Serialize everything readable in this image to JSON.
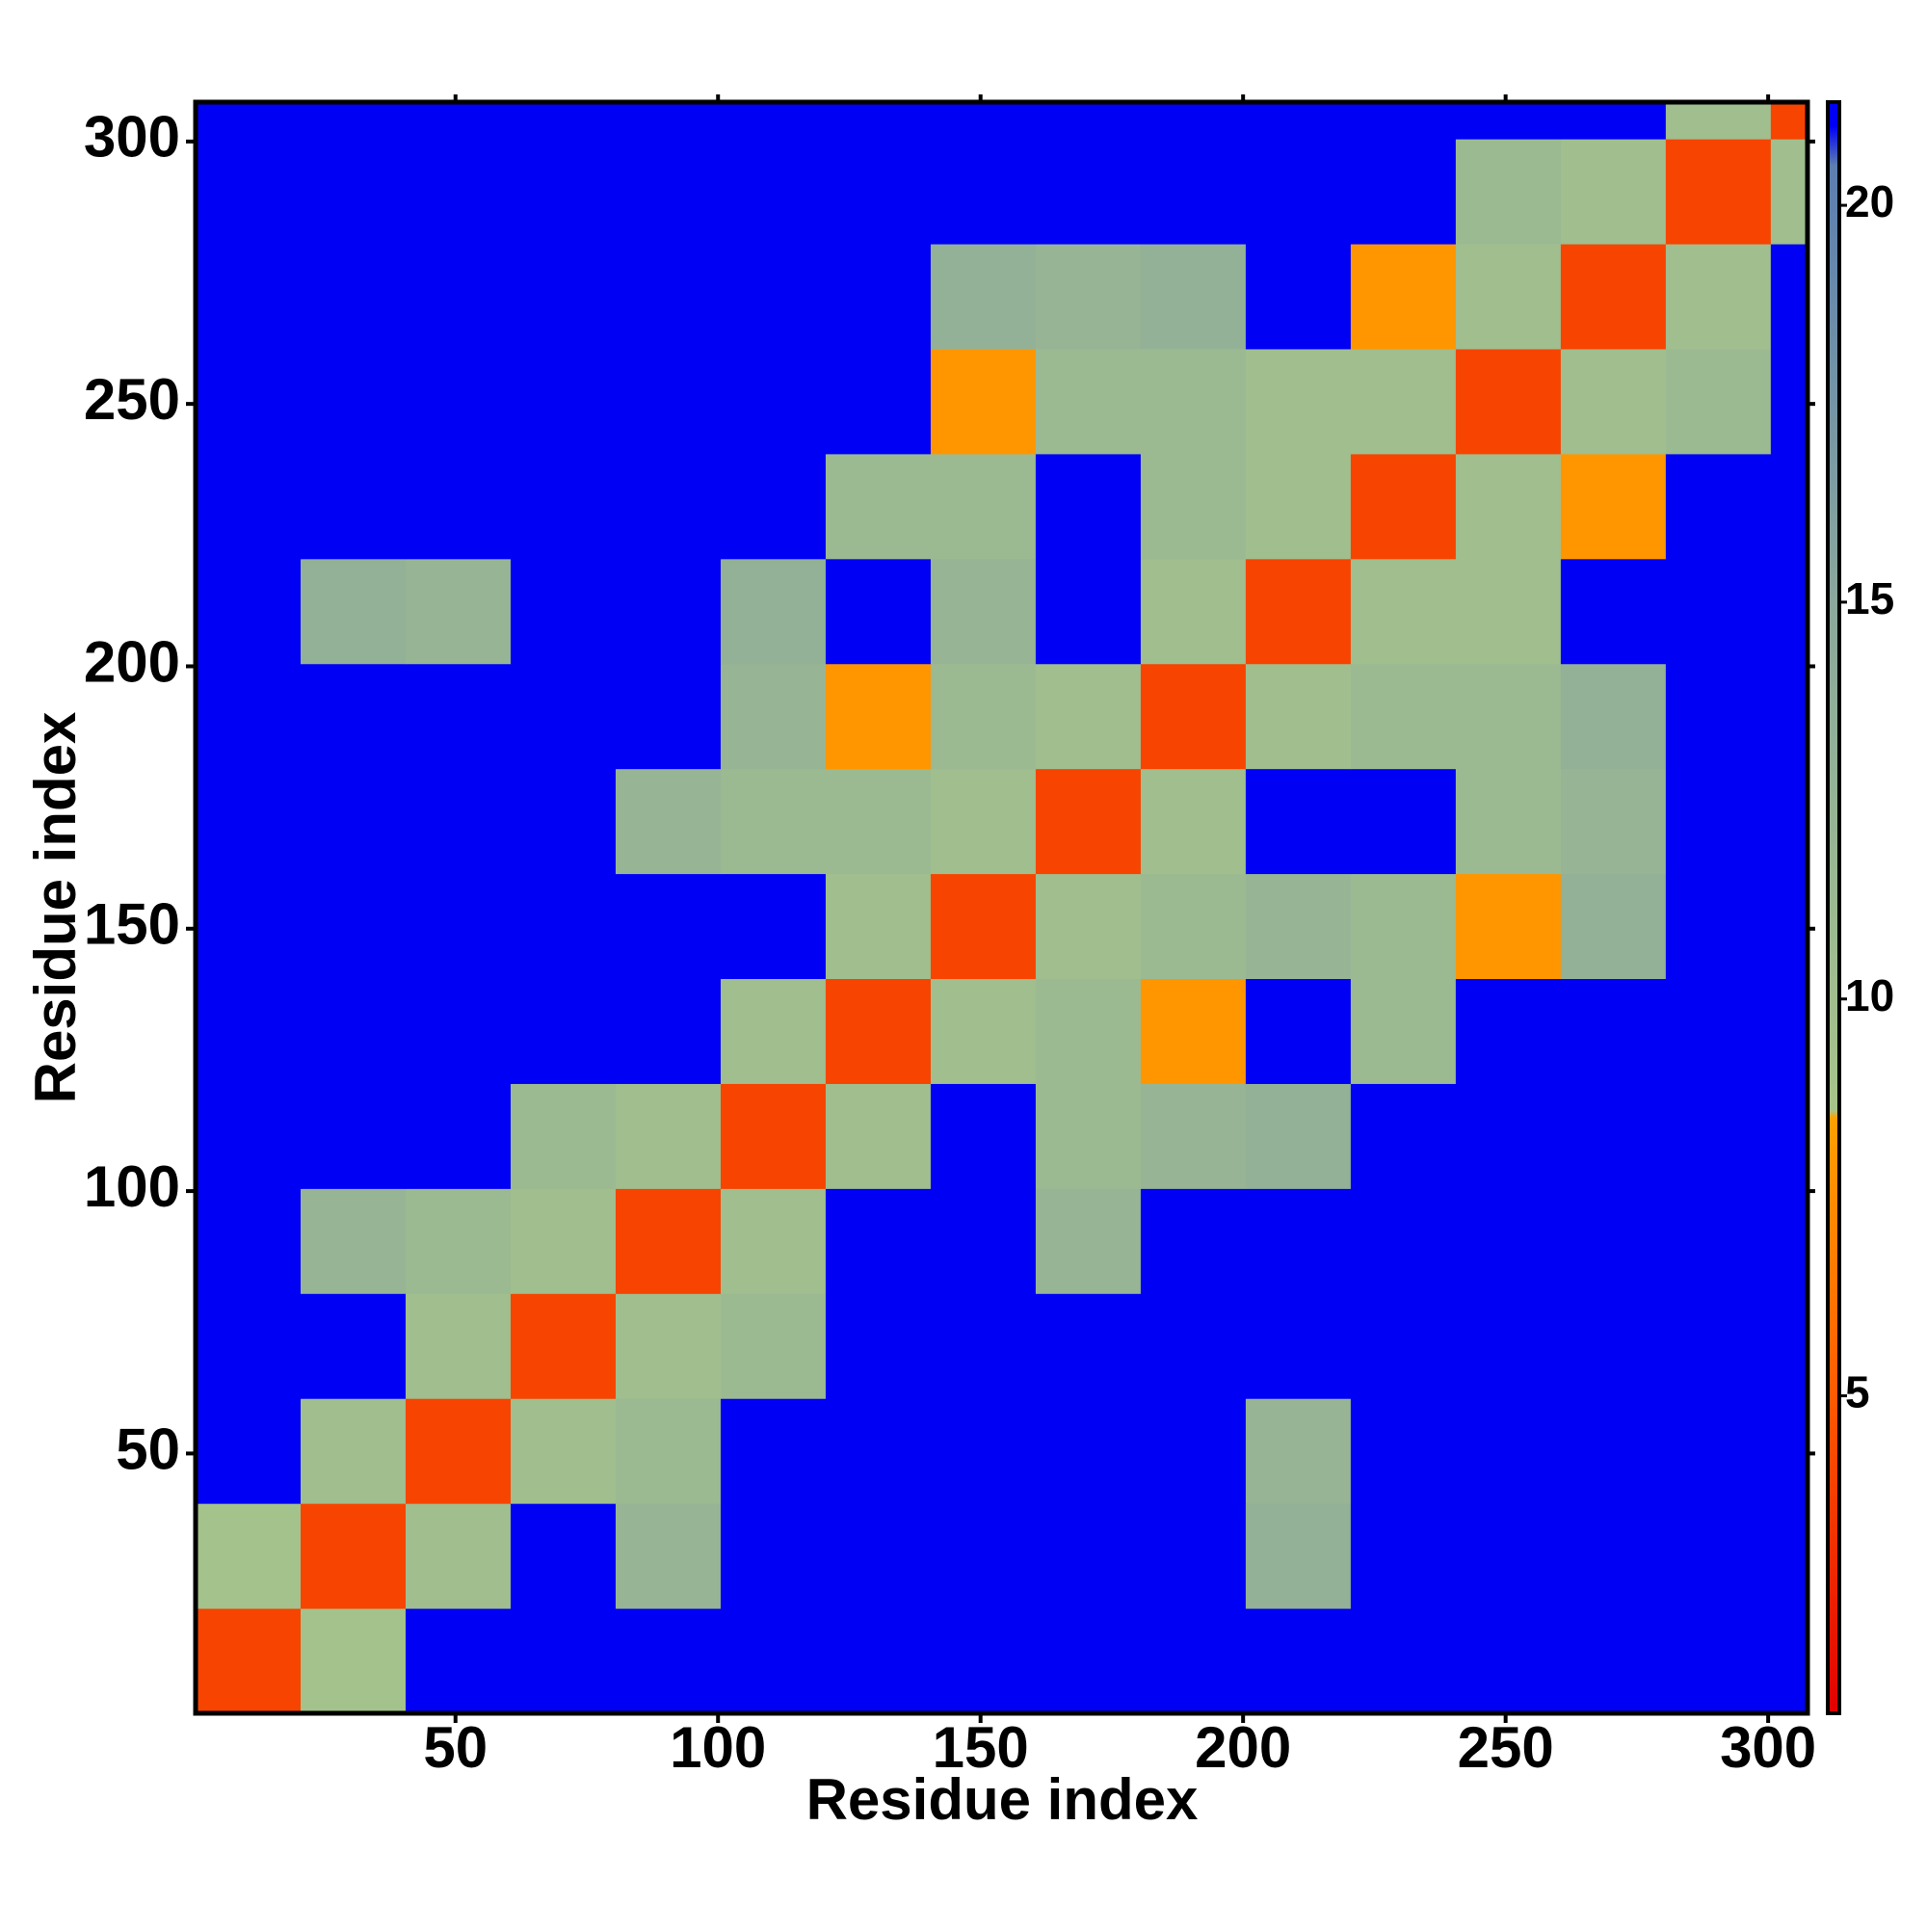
{
  "chart_data": {
    "type": "heatmap",
    "x_label": "Residue index",
    "y_label": "Residue index",
    "xbins": [
      0.5,
      20.5,
      40.5,
      60.5,
      80.5,
      100.5,
      120.5,
      140.5,
      160.5,
      180.5,
      200.5,
      220.5,
      240.5,
      260.5,
      280.5,
      300.5,
      307.5
    ],
    "ybins": [
      0.5,
      20.5,
      40.5,
      60.5,
      80.5,
      100.5,
      120.5,
      140.5,
      160.5,
      180.5,
      200.5,
      220.5,
      240.5,
      260.5,
      280.5,
      300.5,
      307.5
    ],
    "z": [
      [
        4,
        9,
        21,
        21,
        21,
        21,
        21,
        21,
        21,
        21,
        21,
        21,
        21,
        21,
        21,
        21
      ],
      [
        9,
        4,
        10,
        21,
        12,
        21,
        21,
        21,
        21,
        21,
        13,
        21,
        21,
        21,
        21,
        21
      ],
      [
        21,
        10,
        4,
        10,
        11,
        21,
        21,
        21,
        21,
        21,
        12,
        21,
        21,
        21,
        21,
        21
      ],
      [
        21,
        21,
        10,
        4,
        10,
        11,
        21,
        21,
        21,
        21,
        21,
        21,
        21,
        21,
        21,
        21
      ],
      [
        21,
        12,
        11,
        10,
        4,
        10,
        21,
        21,
        12,
        21,
        21,
        21,
        21,
        21,
        21,
        21
      ],
      [
        21,
        21,
        21,
        11,
        10,
        4,
        10,
        21,
        11,
        12,
        13,
        21,
        21,
        21,
        21,
        21
      ],
      [
        21,
        21,
        21,
        21,
        21,
        10,
        4,
        10,
        11,
        8,
        21,
        11,
        21,
        21,
        21,
        21
      ],
      [
        21,
        21,
        21,
        21,
        21,
        21,
        10,
        4,
        10,
        11,
        12,
        11,
        8,
        13,
        21,
        21
      ],
      [
        21,
        21,
        21,
        21,
        12,
        11,
        11,
        10,
        4,
        10,
        21,
        21,
        11,
        12,
        21,
        21
      ],
      [
        21,
        21,
        21,
        21,
        21,
        12,
        8,
        11,
        10,
        4,
        10,
        11,
        11,
        13,
        21,
        21
      ],
      [
        21,
        13,
        12,
        21,
        21,
        13,
        21,
        12,
        21,
        10,
        4,
        10,
        10,
        21,
        21,
        21
      ],
      [
        21,
        21,
        21,
        21,
        21,
        21,
        11,
        11,
        21,
        11,
        10,
        4,
        10,
        8,
        21,
        21
      ],
      [
        21,
        21,
        21,
        21,
        21,
        21,
        21,
        8,
        11,
        11,
        10,
        10,
        4,
        10,
        11,
        21
      ],
      [
        21,
        21,
        21,
        21,
        21,
        21,
        21,
        13,
        12,
        13,
        21,
        8,
        10,
        4,
        10,
        21
      ],
      [
        21,
        21,
        21,
        21,
        21,
        21,
        21,
        21,
        21,
        21,
        21,
        21,
        11,
        10,
        4,
        10
      ],
      [
        21,
        21,
        21,
        21,
        21,
        21,
        21,
        21,
        21,
        21,
        21,
        21,
        21,
        21,
        10,
        4
      ]
    ],
    "xlim": [
      0.5,
      307.5
    ],
    "ylim": [
      0.5,
      307.5
    ],
    "xticks": [
      50,
      100,
      150,
      200,
      250,
      300
    ],
    "yticks": [
      50,
      100,
      150,
      200,
      250,
      300
    ],
    "zlim": [
      1,
      21.3
    ],
    "zticks": [
      5,
      10,
      15,
      20
    ],
    "colorscale": [
      {
        "value": 1,
        "color": "#e00000"
      },
      {
        "value": 5,
        "color": "#ff5a00"
      },
      {
        "value": 8.5,
        "color": "#ffa000"
      },
      {
        "value": 8.6,
        "color": "#a6c48a"
      },
      {
        "value": 15,
        "color": "#8aa89c"
      },
      {
        "value": 20.5,
        "color": "#5c7eb0"
      },
      {
        "value": 21,
        "color": "#0000f5"
      }
    ]
  }
}
